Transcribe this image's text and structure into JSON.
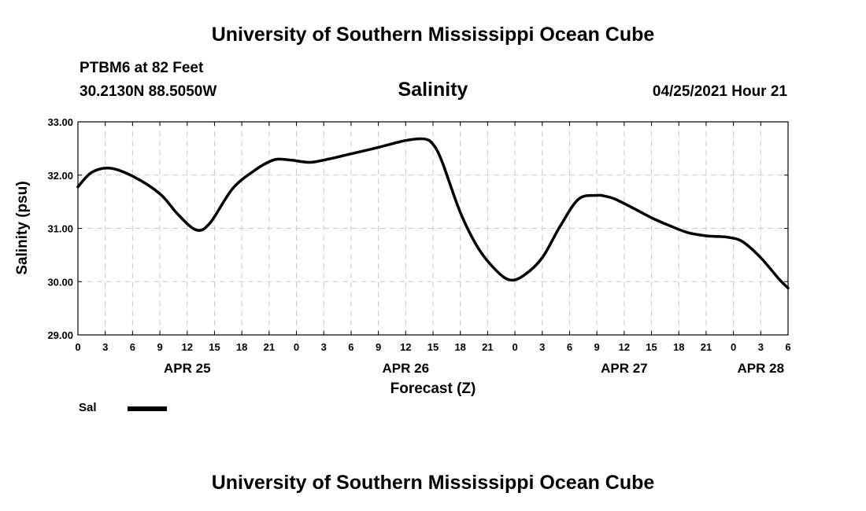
{
  "header": {
    "institution": "University of Southern Mississippi Ocean Cube",
    "station": "PTBM6 at 82 Feet",
    "coords": "30.2130N  88.5050W",
    "variable": "Salinity",
    "timestamp": "04/25/2021 Hour 21"
  },
  "footer": {
    "institution": "University of Southern Mississippi Ocean Cube"
  },
  "legend": {
    "label": "Sal",
    "color": "#000000"
  },
  "chart_data": {
    "type": "line",
    "title": "Salinity",
    "xlabel": "Forecast (Z)",
    "ylabel": "Salinity (psu)",
    "ylim": [
      29.0,
      33.0
    ],
    "xlim": [
      0,
      78
    ],
    "x_unit": "hours from APR 25 00Z",
    "grid": true,
    "y_ticks": [
      "29.00",
      "30.00",
      "31.00",
      "32.00",
      "33.00"
    ],
    "x_ticks": [
      "0",
      "3",
      "6",
      "9",
      "12",
      "15",
      "18",
      "21",
      "0",
      "3",
      "6",
      "9",
      "12",
      "15",
      "18",
      "21",
      "0",
      "3",
      "6",
      "9",
      "12",
      "15",
      "18",
      "21",
      "0",
      "3",
      "6"
    ],
    "date_labels": [
      {
        "label": "APR 25",
        "hour": 12
      },
      {
        "label": "APR 26",
        "hour": 36
      },
      {
        "label": "APR 27",
        "hour": 60
      },
      {
        "label": "APR 28",
        "hour": 75
      }
    ],
    "series": [
      {
        "name": "Sal",
        "color": "#000000",
        "x": [
          0,
          1.5,
          3.5,
          6,
          9,
          11,
          13,
          14.5,
          17,
          19.5,
          21,
          22,
          23.5,
          25.5,
          27.5,
          30,
          33,
          36,
          38,
          39,
          40,
          42,
          44,
          46,
          47.5,
          49,
          51,
          53,
          55,
          57,
          58,
          59,
          61,
          63,
          65,
          67,
          69,
          70,
          71.5,
          73,
          75,
          77,
          78
        ],
        "values": [
          31.78,
          32.05,
          32.13,
          31.98,
          31.65,
          31.26,
          30.97,
          31.1,
          31.75,
          32.1,
          32.25,
          32.3,
          32.28,
          32.24,
          32.3,
          32.4,
          32.52,
          32.65,
          32.68,
          32.58,
          32.25,
          31.3,
          30.62,
          30.2,
          30.03,
          30.12,
          30.45,
          31.05,
          31.55,
          31.62,
          31.6,
          31.55,
          31.38,
          31.2,
          31.05,
          30.92,
          30.86,
          30.85,
          30.83,
          30.75,
          30.45,
          30.05,
          29.88
        ]
      }
    ]
  }
}
